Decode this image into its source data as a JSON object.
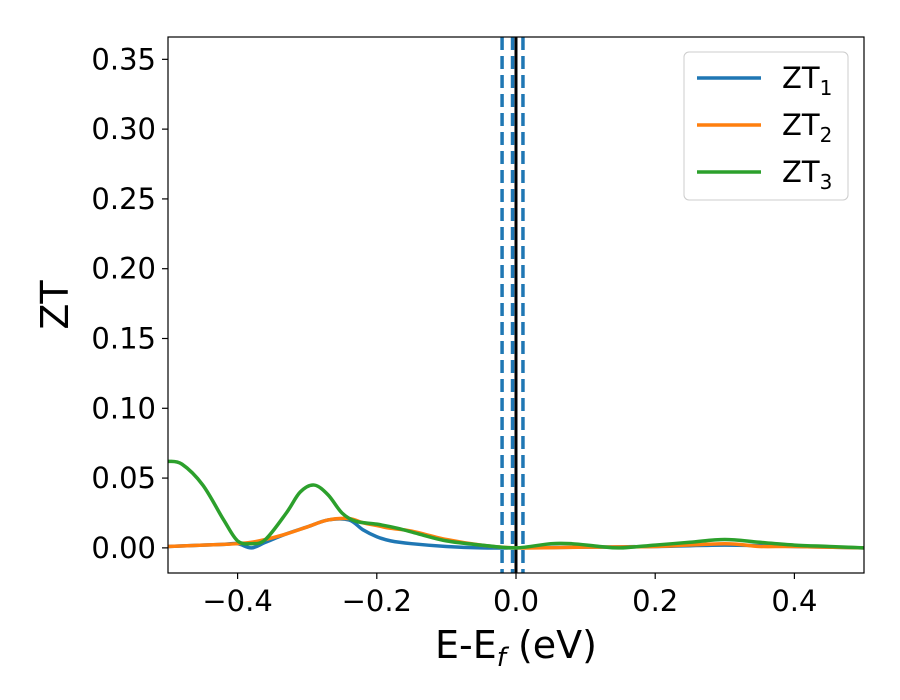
{
  "chart_data": {
    "type": "line",
    "title": "",
    "xlabel": "E-E",
    "xlabel_sub": "f",
    "xlabel_unit": " (eV)",
    "ylabel": "ZT",
    "xlim": [
      -0.5,
      0.5
    ],
    "ylim": [
      -0.018,
      0.366
    ],
    "xticks": [
      -0.4,
      -0.2,
      0.0,
      0.2,
      0.4
    ],
    "xtick_labels": [
      "−0.4",
      "−0.2",
      "0.0",
      "0.2",
      "0.4"
    ],
    "yticks": [
      0.0,
      0.05,
      0.1,
      0.15,
      0.2,
      0.25,
      0.3,
      0.35
    ],
    "ytick_labels": [
      "0.00",
      "0.05",
      "0.10",
      "0.15",
      "0.20",
      "0.25",
      "0.30",
      "0.35"
    ],
    "grid": false,
    "legend_position": "top-right",
    "vlines": [
      {
        "x": 0.0,
        "style": "solid",
        "color": "#000000"
      },
      {
        "x": -0.02,
        "style": "dashed",
        "color": "#1f77b4"
      },
      {
        "x": -0.005,
        "style": "dashed",
        "color": "#1f77b4"
      },
      {
        "x": 0.01,
        "style": "dashed",
        "color": "#1f77b4"
      }
    ],
    "series": [
      {
        "name": "ZT",
        "name_sub": "1",
        "color": "#1f77b4",
        "x": [
          -0.5,
          -0.45,
          -0.42,
          -0.4,
          -0.38,
          -0.36,
          -0.33,
          -0.3,
          -0.27,
          -0.24,
          -0.22,
          -0.2,
          -0.18,
          -0.15,
          -0.1,
          -0.05,
          0.0,
          0.1,
          0.2,
          0.3,
          0.4,
          0.5
        ],
        "y": [
          0.001,
          0.002,
          0.0025,
          0.003,
          0.0,
          0.004,
          0.01,
          0.015,
          0.02,
          0.02,
          0.013,
          0.008,
          0.005,
          0.003,
          0.001,
          0.0,
          0.0,
          0.0005,
          0.001,
          0.002,
          0.001,
          0.0
        ]
      },
      {
        "name": "ZT",
        "name_sub": "2",
        "color": "#ff7f0e",
        "x": [
          -0.5,
          -0.45,
          -0.42,
          -0.4,
          -0.38,
          -0.36,
          -0.33,
          -0.3,
          -0.27,
          -0.24,
          -0.22,
          -0.2,
          -0.18,
          -0.15,
          -0.1,
          -0.05,
          0.0,
          0.1,
          0.2,
          0.3,
          0.35,
          0.4,
          0.5
        ],
        "y": [
          0.001,
          0.002,
          0.0025,
          0.003,
          0.004,
          0.006,
          0.01,
          0.015,
          0.02,
          0.021,
          0.018,
          0.016,
          0.014,
          0.012,
          0.006,
          0.002,
          0.0,
          0.0005,
          0.001,
          0.003,
          0.001,
          0.001,
          0.0
        ]
      },
      {
        "name": "ZT",
        "name_sub": "3",
        "color": "#2ca02c",
        "x": [
          -0.5,
          -0.48,
          -0.45,
          -0.42,
          -0.4,
          -0.38,
          -0.36,
          -0.33,
          -0.31,
          -0.29,
          -0.27,
          -0.25,
          -0.23,
          -0.2,
          -0.17,
          -0.14,
          -0.1,
          -0.05,
          0.0,
          0.05,
          0.08,
          0.12,
          0.15,
          0.2,
          0.25,
          0.3,
          0.35,
          0.4,
          0.45,
          0.5
        ],
        "y": [
          0.062,
          0.06,
          0.045,
          0.02,
          0.005,
          0.003,
          0.006,
          0.025,
          0.04,
          0.045,
          0.038,
          0.025,
          0.019,
          0.017,
          0.014,
          0.01,
          0.005,
          0.002,
          0.0,
          0.003,
          0.003,
          0.001,
          0.0,
          0.002,
          0.004,
          0.006,
          0.004,
          0.002,
          0.001,
          0.0
        ]
      }
    ]
  }
}
